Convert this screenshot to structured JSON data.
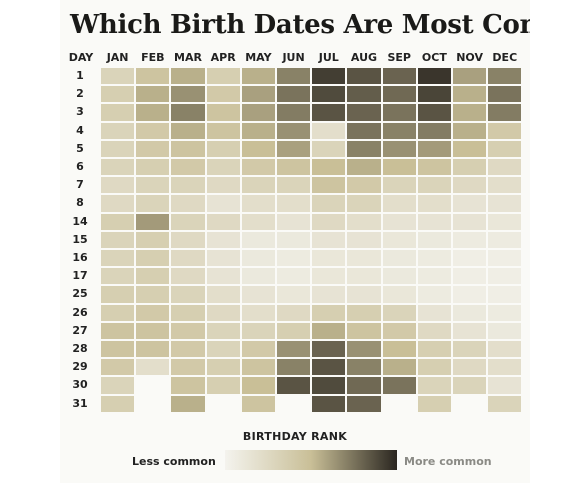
{
  "title": "Which Birth Dates Are Most Common?",
  "legend": {
    "title": "BIRTHDAY RANK",
    "less": "Less common",
    "more": "More common"
  },
  "colors": {
    "least": "#f4f3ee",
    "mid": "#c9bf97",
    "most": "#2a2620"
  },
  "chart_data": {
    "type": "heatmap",
    "title": "Which Birth Dates Are Most Common?",
    "row_header": "DAY",
    "columns": [
      "JAN",
      "FEB",
      "MAR",
      "APR",
      "MAY",
      "JUN",
      "JUL",
      "AUG",
      "SEP",
      "OCT",
      "NOV",
      "DEC"
    ],
    "rows": [
      "1",
      "2",
      "3",
      "4",
      "5",
      "6",
      "7",
      "8",
      "14",
      "15",
      "16",
      "17",
      "25",
      "26",
      "27",
      "28",
      "29",
      "30",
      "31"
    ],
    "value_scale": "0 = less common, 1 = more common",
    "values": [
      [
        0.3,
        0.45,
        0.55,
        0.35,
        0.55,
        0.7,
        0.92,
        0.85,
        0.8,
        0.95,
        0.6,
        0.7
      ],
      [
        0.35,
        0.55,
        0.65,
        0.4,
        0.6,
        0.75,
        0.88,
        0.82,
        0.78,
        0.9,
        0.55,
        0.75
      ],
      [
        0.35,
        0.55,
        0.7,
        0.45,
        0.6,
        0.72,
        0.85,
        0.8,
        0.75,
        0.85,
        0.55,
        0.72
      ],
      [
        0.3,
        0.4,
        0.55,
        0.45,
        0.55,
        0.65,
        0.2,
        0.75,
        0.7,
        0.72,
        0.55,
        0.4
      ],
      [
        0.3,
        0.4,
        0.45,
        0.35,
        0.5,
        0.6,
        0.3,
        0.7,
        0.65,
        0.62,
        0.5,
        0.35
      ],
      [
        0.3,
        0.35,
        0.4,
        0.3,
        0.4,
        0.45,
        0.5,
        0.55,
        0.5,
        0.45,
        0.35,
        0.25
      ],
      [
        0.25,
        0.3,
        0.3,
        0.25,
        0.3,
        0.3,
        0.45,
        0.4,
        0.3,
        0.3,
        0.25,
        0.2
      ],
      [
        0.25,
        0.3,
        0.25,
        0.15,
        0.2,
        0.2,
        0.3,
        0.3,
        0.2,
        0.2,
        0.15,
        0.15
      ],
      [
        0.35,
        0.62,
        0.3,
        0.25,
        0.2,
        0.15,
        0.25,
        0.2,
        0.15,
        0.15,
        0.15,
        0.12
      ],
      [
        0.3,
        0.35,
        0.25,
        0.15,
        0.1,
        0.1,
        0.15,
        0.15,
        0.12,
        0.1,
        0.08,
        0.08
      ],
      [
        0.3,
        0.35,
        0.25,
        0.15,
        0.1,
        0.08,
        0.12,
        0.12,
        0.1,
        0.08,
        0.05,
        0.05
      ],
      [
        0.3,
        0.35,
        0.25,
        0.15,
        0.1,
        0.08,
        0.12,
        0.12,
        0.1,
        0.08,
        0.05,
        0.05
      ],
      [
        0.35,
        0.35,
        0.3,
        0.2,
        0.15,
        0.12,
        0.15,
        0.15,
        0.12,
        0.08,
        0.05,
        0.05
      ],
      [
        0.35,
        0.4,
        0.35,
        0.25,
        0.2,
        0.25,
        0.35,
        0.35,
        0.3,
        0.15,
        0.1,
        0.08
      ],
      [
        0.45,
        0.45,
        0.4,
        0.3,
        0.3,
        0.35,
        0.55,
        0.45,
        0.4,
        0.25,
        0.15,
        0.1
      ],
      [
        0.45,
        0.45,
        0.4,
        0.3,
        0.4,
        0.65,
        0.8,
        0.65,
        0.5,
        0.35,
        0.3,
        0.2
      ],
      [
        0.4,
        0.2,
        0.4,
        0.35,
        0.45,
        0.7,
        0.85,
        0.7,
        0.55,
        0.35,
        0.25,
        0.2
      ],
      [
        0.3,
        null,
        0.45,
        0.35,
        0.5,
        0.85,
        0.88,
        0.78,
        0.75,
        0.3,
        0.3,
        0.15
      ],
      [
        0.35,
        null,
        0.55,
        null,
        0.45,
        null,
        0.85,
        0.8,
        null,
        0.35,
        null,
        0.3
      ]
    ]
  }
}
